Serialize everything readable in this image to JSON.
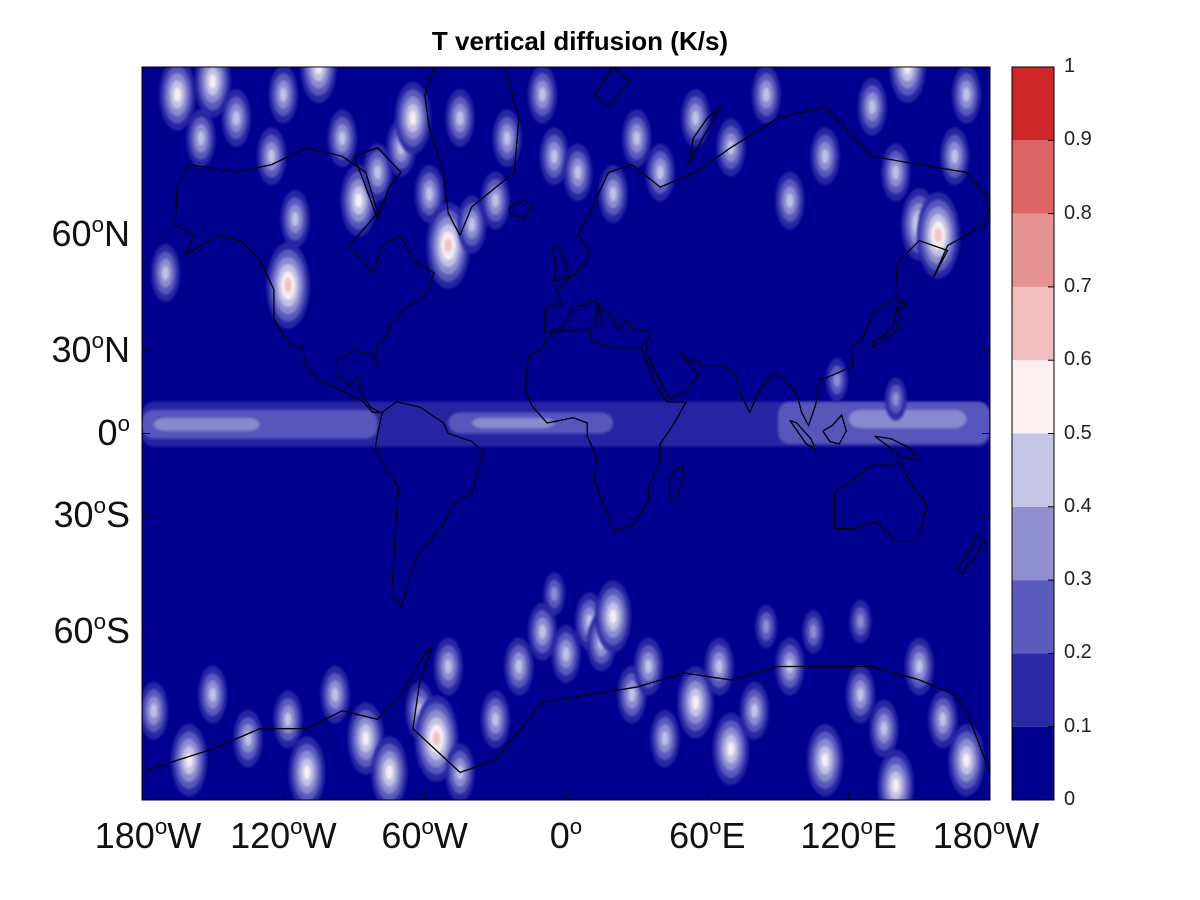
{
  "title": "T vertical diffusion (K/s)",
  "map": {
    "projection": "mercator",
    "lon_range": [
      -180,
      180
    ],
    "lat_range": [
      -80,
      80
    ],
    "lat_ticks": [
      {
        "deg": "60",
        "hemi": "N"
      },
      {
        "deg": "30",
        "hemi": "N"
      },
      {
        "deg": "0",
        "hemi": ""
      },
      {
        "deg": "30",
        "hemi": "S"
      },
      {
        "deg": "60",
        "hemi": "S"
      }
    ],
    "lon_ticks": [
      {
        "deg": "180",
        "hemi": "W"
      },
      {
        "deg": "120",
        "hemi": "W"
      },
      {
        "deg": "60",
        "hemi": "W"
      },
      {
        "deg": "0",
        "hemi": ""
      },
      {
        "deg": "60",
        "hemi": "E"
      },
      {
        "deg": "120",
        "hemi": "E"
      },
      {
        "deg": "180",
        "hemi": "W"
      }
    ],
    "coastlines": "black",
    "field": "T vertical diffusion",
    "units": "K/s"
  },
  "colorbar": {
    "ticks": [
      "0",
      "0.1",
      "0.2",
      "0.3",
      "0.4",
      "0.5",
      "0.6",
      "0.7",
      "0.8",
      "0.9",
      "1"
    ],
    "colors": [
      "#00008f",
      "#2b2ba6",
      "#5b5bbe",
      "#8f8fd2",
      "#c5c5e6",
      "#fbf1f1",
      "#f2bfbf",
      "#e69292",
      "#db6363",
      "#cf2727"
    ],
    "orientation": "vertical",
    "location": "right"
  }
}
